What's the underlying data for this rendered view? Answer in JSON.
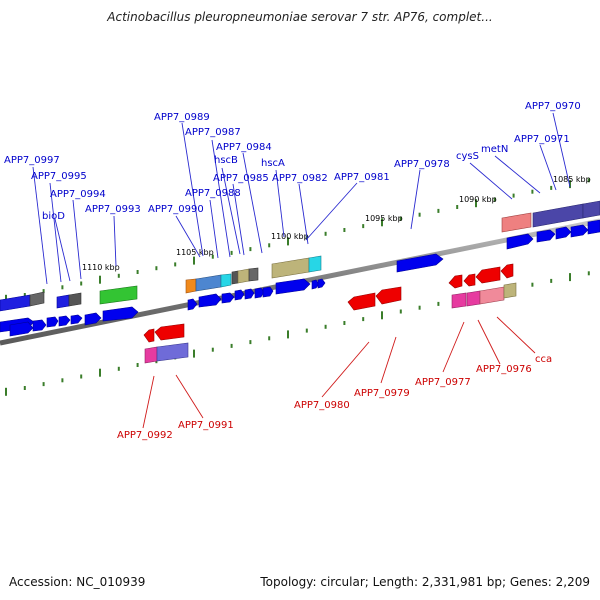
{
  "title": "Actinobacillus pleuropneumoniae serovar 7 str. AP76, complet...",
  "footer": {
    "accession": "Accession: NC_010939",
    "topology": "Topology: circular; Length: 2,331,981 bp; Genes: 2,209"
  },
  "ruler_labels": [
    "1110 kbp",
    "1105 kbp",
    "1100 kbp",
    "1095 kbp",
    "1090 kbp",
    "1085 kbp"
  ],
  "gene_labels_top": [
    "APP7_0997",
    "APP7_0995",
    "bioD",
    "APP7_0994",
    "APP7_0993",
    "APP7_0990",
    "APP7_0989",
    "APP7_0988",
    "APP7_0987",
    "hscB",
    "APP7_0985",
    "APP7_0984",
    "hscA",
    "APP7_0982",
    "APP7_0981",
    "APP7_0978",
    "cysS",
    "metN",
    "APP7_0971",
    "APP7_0970"
  ],
  "gene_labels_bottom": [
    "APP7_0992",
    "APP7_0991",
    "APP7_0980",
    "APP7_0979",
    "APP7_0977",
    "APP7_0976",
    "cca"
  ],
  "colors": {
    "top_label": "#0000cc",
    "bottom_label": "#cc0000",
    "cds_forward": "#0000ee",
    "cds_reverse": "#ee0000",
    "ruler_tick": "#3a7d2a",
    "backbone": "#808080"
  }
}
